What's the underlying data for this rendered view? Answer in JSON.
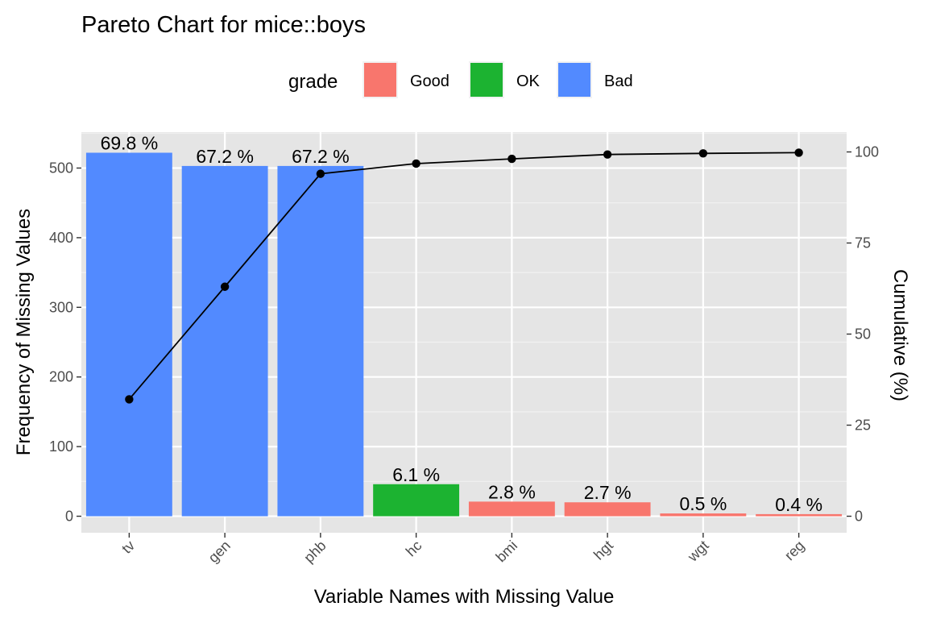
{
  "chart_data": {
    "type": "bar",
    "title": "Pareto Chart for mice::boys",
    "xlabel": "Variable Names with Missing Value",
    "ylabel": "Frequency of Missing Values",
    "y2label": "Cumulative (%)",
    "categories": [
      "tv",
      "gen",
      "phb",
      "hc",
      "bmi",
      "hgt",
      "wgt",
      "reg"
    ],
    "values": [
      522,
      503,
      503,
      46,
      21,
      20,
      4,
      3
    ],
    "labels": [
      "69.8 %",
      "67.2 %",
      "67.2 %",
      "6.1 %",
      "2.8 %",
      "2.7 %",
      "0.5 %",
      "0.4 %"
    ],
    "grades": [
      "Bad",
      "Bad",
      "Bad",
      "OK",
      "Good",
      "Good",
      "Good",
      "Good"
    ],
    "cumulative": [
      32.1,
      63.0,
      94.0,
      96.8,
      98.1,
      99.3,
      99.6,
      99.8
    ],
    "ylim": [
      0,
      550
    ],
    "y2lim": [
      0,
      100
    ],
    "yticks": [
      0,
      100,
      200,
      300,
      400,
      500
    ],
    "y2ticks": [
      0,
      25,
      50,
      75,
      100
    ],
    "grid": true,
    "legend": {
      "title": "grade",
      "position": "top",
      "entries": [
        {
          "name": "Good",
          "color": "#F8766D"
        },
        {
          "name": "OK",
          "color": "#1CB331"
        },
        {
          "name": "Bad",
          "color": "#528AFF"
        }
      ]
    },
    "panel_color": "#E5E5E5",
    "line_color": "#000000"
  }
}
